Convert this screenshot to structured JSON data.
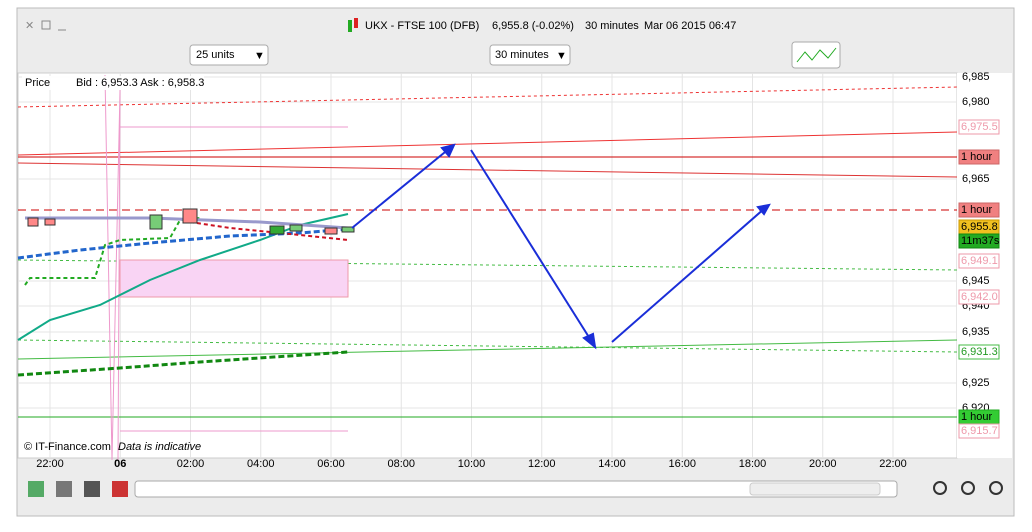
{
  "window": {
    "title": "UKX - FTSE 100 (DFB)",
    "price": "6,955.8 (-0.02%)",
    "interval": "30 minutes",
    "datetime": "Mar 06 2015 06:47"
  },
  "toolbar": {
    "units": "25 units",
    "period": "30 minutes"
  },
  "chart": {
    "price_label": "Price",
    "quote": "Bid : 6,953.3 Ask : 6,958.3",
    "y_axis": [
      "6,985",
      "6,980",
      "6,965",
      "6,945",
      "6,940",
      "6,935",
      "6,925",
      "6,920"
    ],
    "x_axis": [
      "22:00",
      "06",
      "02:00",
      "04:00",
      "06:00",
      "08:00",
      "10:00",
      "12:00",
      "14:00",
      "16:00",
      "18:00",
      "20:00",
      "22:00"
    ],
    "price_tags": [
      "6,975.5",
      "1 hour",
      "1 hour",
      "6,955.8",
      "11m37s",
      "6,949.1",
      "6,942.0",
      "6,931.3",
      "1 hour",
      "6,915.7"
    ],
    "footer": "© IT-Finance.com",
    "disclaimer": "Data is indicative"
  }
}
